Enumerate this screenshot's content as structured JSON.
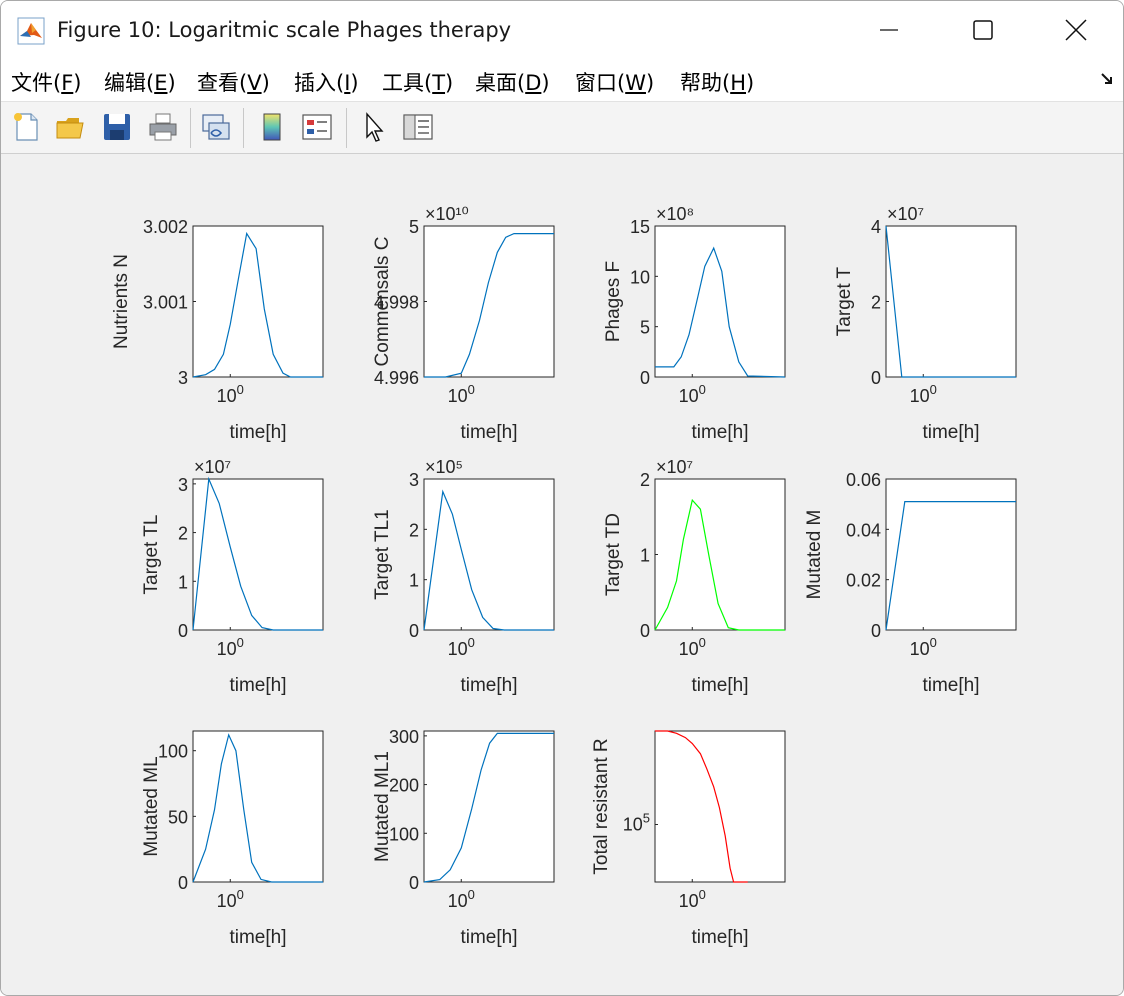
{
  "window": {
    "title": "Figure 10: Logaritmic scale Phages therapy",
    "icon": "matlab-icon",
    "controls": [
      "minimize-icon",
      "maximize-icon",
      "close-icon"
    ]
  },
  "menu": [
    {
      "pre": "文件(",
      "key": "F",
      "post": ")"
    },
    {
      "pre": "编辑(",
      "key": "E",
      "post": ")"
    },
    {
      "pre": "查看(",
      "key": "V",
      "post": ")"
    },
    {
      "pre": "插入(",
      "key": "I",
      "post": ")"
    },
    {
      "pre": "工具(",
      "key": "T",
      "post": ")"
    },
    {
      "pre": "桌面(",
      "key": "D",
      "post": ")"
    },
    {
      "pre": "窗口(",
      "key": "W",
      "post": ")"
    },
    {
      "pre": "帮助(",
      "key": "H",
      "post": ")"
    }
  ],
  "toolbar": [
    "new-figure-icon",
    "open-icon",
    "save-icon",
    "print-icon",
    "link-icon",
    "colorbar-icon",
    "legend-icon",
    "pointer-icon",
    "property-inspector-icon"
  ],
  "colors": {
    "blue": "#0072bd",
    "green": "#00ff00",
    "red": "#ff0000"
  },
  "chart_data": [
    {
      "type": "line",
      "ylabel": "Nutrients N",
      "xlabel": "time[h]",
      "xscale": "log",
      "xticks": [
        "10⁰"
      ],
      "ylim": [
        3,
        3.002
      ],
      "yticks": [
        "3",
        "3.001",
        "3.002"
      ],
      "exponent": "",
      "color": "blue",
      "x": [
        0.3,
        0.45,
        0.6,
        0.8,
        1.0,
        1.3,
        1.7,
        2.3,
        3.0,
        4.0,
        5.5,
        7.0,
        12,
        20
      ],
      "y": [
        3,
        3.00003,
        3.0001,
        3.0003,
        3.0007,
        3.0013,
        3.0019,
        3.0017,
        3.0009,
        3.0003,
        3.00005,
        3,
        3,
        3
      ]
    },
    {
      "type": "line",
      "ylabel": "Commensals C",
      "xlabel": "time[h]",
      "xscale": "log",
      "xticks": [
        "10⁰"
      ],
      "ylim": [
        4.996,
        5.0
      ],
      "yticks": [
        "4.996",
        "4.998",
        "5"
      ],
      "exponent": "×10¹⁰",
      "color": "blue",
      "x": [
        0.3,
        0.6,
        1.0,
        1.3,
        1.8,
        2.4,
        3.2,
        4.2,
        5.5,
        7,
        10,
        20
      ],
      "y": [
        4.996,
        4.996,
        4.9961,
        4.9966,
        4.9975,
        4.9985,
        4.9993,
        4.9997,
        4.9998,
        4.9998,
        4.9998,
        4.9998
      ]
    },
    {
      "type": "line",
      "ylabel": "Phages F",
      "xlabel": "time[h]",
      "xscale": "log",
      "xticks": [
        "10⁰"
      ],
      "ylim": [
        0,
        15
      ],
      "yticks": [
        "0",
        "5",
        "10",
        "15"
      ],
      "exponent": "×10⁸",
      "color": "blue",
      "x": [
        0.3,
        0.55,
        0.7,
        0.9,
        1.2,
        1.5,
        2.0,
        2.6,
        3.3,
        4.5,
        6,
        20
      ],
      "y": [
        1.0,
        1.0,
        2.0,
        4.2,
        8.0,
        11.0,
        12.8,
        10.5,
        5.0,
        1.5,
        0.1,
        0
      ]
    },
    {
      "type": "line",
      "ylabel": "Target T",
      "xlabel": "time[h]",
      "xscale": "log",
      "xticks": [
        "10⁰"
      ],
      "ylim": [
        0,
        4
      ],
      "yticks": [
        "0",
        "2",
        "4"
      ],
      "exponent": "×10⁷",
      "color": "blue",
      "x": [
        0.3,
        0.5,
        1,
        20
      ],
      "y": [
        4.0,
        0,
        0,
        0
      ]
    },
    {
      "type": "line",
      "ylabel": "Target TL",
      "xlabel": "time[h]",
      "xscale": "log",
      "xticks": [
        "10⁰"
      ],
      "ylim": [
        0,
        3.1
      ],
      "yticks": [
        "0",
        "1",
        "2",
        "3"
      ],
      "exponent": "×10⁷",
      "color": "blue",
      "x": [
        0.3,
        0.5,
        0.7,
        1.0,
        1.4,
        2.0,
        2.8,
        4.0,
        6,
        20
      ],
      "y": [
        0,
        3.1,
        2.6,
        1.7,
        0.9,
        0.3,
        0.05,
        0,
        0,
        0
      ]
    },
    {
      "type": "line",
      "ylabel": "Target TL1",
      "xlabel": "time[h]",
      "xscale": "log",
      "xticks": [
        "10⁰"
      ],
      "ylim": [
        0,
        3
      ],
      "yticks": [
        "0",
        "1",
        "2",
        "3"
      ],
      "exponent": "×10⁵",
      "color": "blue",
      "x": [
        0.3,
        0.55,
        0.75,
        1.0,
        1.4,
        2.0,
        2.8,
        4.0,
        6,
        20
      ],
      "y": [
        0,
        2.75,
        2.3,
        1.6,
        0.8,
        0.25,
        0.03,
        0,
        0,
        0
      ]
    },
    {
      "type": "line",
      "ylabel": "Target TD",
      "xlabel": "time[h]",
      "xscale": "log",
      "xticks": [
        "10⁰"
      ],
      "ylim": [
        0,
        2
      ],
      "yticks": [
        "0",
        "1",
        "2"
      ],
      "exponent": "×10⁷",
      "color": "green",
      "x": [
        0.3,
        0.45,
        0.6,
        0.75,
        1.0,
        1.3,
        1.7,
        2.3,
        3.2,
        4.5,
        6,
        20
      ],
      "y": [
        0,
        0.3,
        0.65,
        1.2,
        1.72,
        1.6,
        1.0,
        0.35,
        0.03,
        0,
        0,
        0
      ]
    },
    {
      "type": "line",
      "ylabel": "Mutated M",
      "xlabel": "time[h]",
      "xscale": "log",
      "xticks": [
        "10⁰"
      ],
      "ylim": [
        0,
        0.06
      ],
      "yticks": [
        "0",
        "0.02",
        "0.04",
        "0.06"
      ],
      "exponent": "",
      "color": "blue",
      "x": [
        0.3,
        0.55,
        1,
        20
      ],
      "y": [
        0,
        0.051,
        0.051,
        0.051
      ]
    },
    {
      "type": "line",
      "ylabel": "Mutated ML",
      "xlabel": "time[h]",
      "xscale": "log",
      "xticks": [
        "10⁰"
      ],
      "ylim": [
        0,
        115
      ],
      "yticks": [
        "0",
        "50",
        "100"
      ],
      "exponent": "",
      "color": "blue",
      "x": [
        0.3,
        0.45,
        0.6,
        0.75,
        0.95,
        1.2,
        1.55,
        2.0,
        2.7,
        3.8,
        5.5,
        20
      ],
      "y": [
        0,
        25,
        55,
        90,
        112,
        100,
        55,
        15,
        2,
        0,
        0,
        0
      ]
    },
    {
      "type": "line",
      "ylabel": "Mutated ML1",
      "xlabel": "time[h]",
      "xscale": "log",
      "xticks": [
        "10⁰"
      ],
      "ylim": [
        0,
        310
      ],
      "yticks": [
        "0",
        "100",
        "200",
        "300"
      ],
      "exponent": "",
      "color": "blue",
      "x": [
        0.3,
        0.5,
        0.7,
        1.0,
        1.4,
        1.9,
        2.5,
        3.2,
        4.0,
        5.5,
        8,
        20
      ],
      "y": [
        0,
        5,
        25,
        70,
        150,
        230,
        285,
        305,
        305,
        305,
        305,
        305
      ]
    },
    {
      "type": "line",
      "ylabel": "Total resistant R",
      "xlabel": "time[h]",
      "xscale": "log",
      "yscale": "log",
      "xticks": [
        "10⁰"
      ],
      "ylim": [
        3000,
        30000000
      ],
      "yticks": [
        "10⁵"
      ],
      "exponent": "",
      "color": "red",
      "x": [
        0.3,
        0.45,
        0.6,
        0.8,
        1.0,
        1.3,
        1.6,
        2.0,
        2.4,
        2.9,
        3.4,
        3.8,
        4.6,
        6
      ],
      "y": [
        30000000,
        30000000,
        26000000,
        20000000,
        14000000,
        7500000,
        3000000,
        1000000,
        280000,
        50000,
        7000,
        3000,
        3000,
        3000
      ]
    }
  ]
}
